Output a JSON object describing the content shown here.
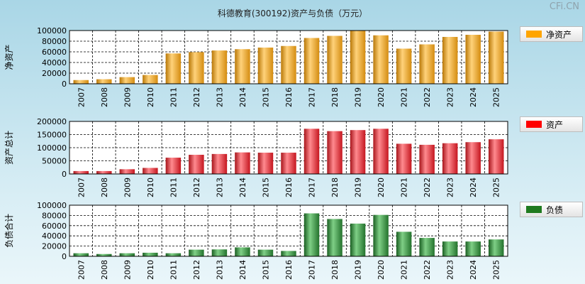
{
  "page_title": "科德教育(300192)资产与负债（万元）",
  "watermark": "CFi.CN",
  "chart_data": [
    {
      "type": "bar",
      "ylabel": "净资产",
      "legend": "净资产",
      "color": "#f5a623",
      "ylim": [
        0,
        100000
      ],
      "yticks": [
        0,
        20000,
        40000,
        60000,
        80000,
        100000
      ],
      "categories": [
        "2007",
        "2008",
        "2009",
        "2010",
        "2011",
        "2012",
        "2013",
        "2014",
        "2015",
        "2016",
        "2017",
        "2018",
        "2019",
        "2020",
        "2021",
        "2022",
        "2023",
        "2024",
        "2025"
      ],
      "values": [
        7000,
        8500,
        12500,
        16500,
        57000,
        59500,
        62500,
        65000,
        68000,
        71000,
        86000,
        90000,
        100000,
        91000,
        66000,
        74000,
        88000,
        92000,
        98000
      ]
    },
    {
      "type": "bar",
      "ylabel": "资产总计",
      "legend": "资产",
      "color": "#e8232b",
      "ylim": [
        0,
        200000
      ],
      "yticks": [
        0,
        50000,
        100000,
        150000,
        200000
      ],
      "categories": [
        "2007",
        "2008",
        "2009",
        "2010",
        "2011",
        "2012",
        "2013",
        "2014",
        "2015",
        "2016",
        "2017",
        "2018",
        "2019",
        "2020",
        "2021",
        "2022",
        "2023",
        "2024",
        "2025"
      ],
      "values": [
        11000,
        11000,
        18000,
        23000,
        62000,
        73000,
        76000,
        82000,
        81000,
        81000,
        172000,
        163000,
        167000,
        172000,
        115000,
        111000,
        117000,
        121000,
        132000
      ]
    },
    {
      "type": "bar",
      "ylabel": "负债合计",
      "legend": "负债",
      "color": "#1f8a2e",
      "ylim": [
        0,
        100000
      ],
      "yticks": [
        0,
        20000,
        40000,
        60000,
        80000,
        100000
      ],
      "categories": [
        "2007",
        "2008",
        "2009",
        "2010",
        "2011",
        "2012",
        "2013",
        "2014",
        "2015",
        "2016",
        "2017",
        "2018",
        "2019",
        "2020",
        "2021",
        "2022",
        "2023",
        "2024",
        "2025"
      ],
      "values": [
        6000,
        4500,
        6000,
        7000,
        6000,
        13000,
        13500,
        17500,
        13000,
        10500,
        84000,
        73000,
        64000,
        81000,
        48000,
        36000,
        29000,
        29000,
        33000
      ]
    }
  ]
}
